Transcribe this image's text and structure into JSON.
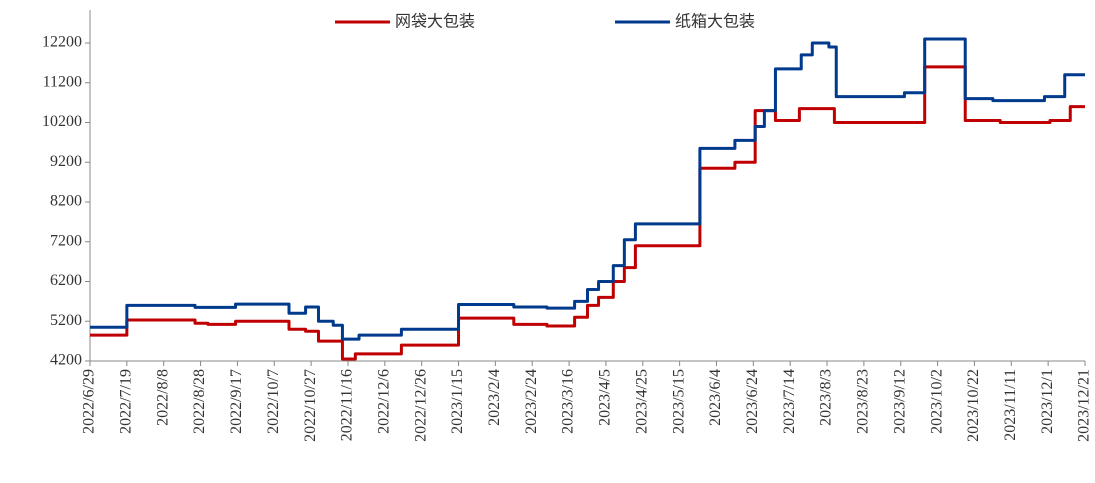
{
  "chart_data": {
    "type": "line",
    "step": true,
    "legend": "top",
    "ylim": [
      4200,
      12200
    ],
    "yticks": [
      4200,
      5200,
      6200,
      7200,
      8200,
      9200,
      10200,
      11200,
      12200
    ],
    "xlim": [
      "2022/6/29",
      "2023/12/21"
    ],
    "xticks": [
      "2022/6/29",
      "2022/7/19",
      "2022/8/8",
      "2022/8/28",
      "2022/9/17",
      "2022/10/7",
      "2022/10/27",
      "2022/11/16",
      "2022/12/6",
      "2022/12/26",
      "2023/1/15",
      "2023/2/4",
      "2023/2/24",
      "2023/3/16",
      "2023/4/5",
      "2023/4/25",
      "2023/5/15",
      "2023/6/4",
      "2023/6/24",
      "2023/7/14",
      "2023/8/3",
      "2023/8/23",
      "2023/9/12",
      "2023/10/2",
      "2023/10/22",
      "2023/11/11",
      "2023/12/1",
      "2023/12/21"
    ],
    "series": [
      {
        "name": "网袋大包装",
        "color": "#c00000",
        "x": [
          "2022/6/29",
          "2022/7/19",
          "2022/8/25",
          "2022/9/1",
          "2022/9/16",
          "2022/10/15",
          "2022/10/24",
          "2022/10/31",
          "2022/11/13",
          "2022/11/20",
          "2022/12/15",
          "2023/1/15",
          "2023/2/14",
          "2023/3/4",
          "2023/3/19",
          "2023/3/26",
          "2023/4/1",
          "2023/4/9",
          "2023/4/15",
          "2023/4/21",
          "2023/5/26",
          "2023/6/14",
          "2023/6/25",
          "2023/7/6",
          "2023/7/19",
          "2023/8/7",
          "2023/9/25",
          "2023/10/17",
          "2023/11/5",
          "2023/12/2",
          "2023/12/13",
          "2023/12/21"
        ],
        "values": [
          4850,
          5230,
          5150,
          5120,
          5200,
          5000,
          4950,
          4700,
          4250,
          4380,
          4600,
          5280,
          5120,
          5080,
          5300,
          5600,
          5800,
          6200,
          6550,
          7100,
          9050,
          9200,
          10500,
          10250,
          10550,
          10200,
          11600,
          10250,
          10200,
          10250,
          10600,
          10600
        ]
      },
      {
        "name": "纸箱大包装",
        "color": "#003a8c",
        "x": [
          "2022/6/29",
          "2022/7/19",
          "2022/8/25",
          "2022/9/16",
          "2022/10/15",
          "2022/10/24",
          "2022/10/31",
          "2022/11/8",
          "2022/11/13",
          "2022/11/22",
          "2022/12/15",
          "2023/1/15",
          "2023/2/14",
          "2023/3/4",
          "2023/3/19",
          "2023/3/26",
          "2023/4/1",
          "2023/4/9",
          "2023/4/15",
          "2023/4/21",
          "2023/5/26",
          "2023/6/14",
          "2023/6/25",
          "2023/6/30",
          "2023/7/6",
          "2023/7/20",
          "2023/7/26",
          "2023/8/4",
          "2023/8/8",
          "2023/9/14",
          "2023/9/25",
          "2023/10/17",
          "2023/11/1",
          "2023/11/29",
          "2023/12/10",
          "2023/12/21"
        ],
        "values": [
          5050,
          5600,
          5550,
          5630,
          5400,
          5560,
          5200,
          5100,
          4750,
          4850,
          5000,
          5620,
          5560,
          5530,
          5700,
          6000,
          6200,
          6600,
          7250,
          7650,
          9550,
          9750,
          10100,
          10500,
          11550,
          11900,
          12200,
          12100,
          10850,
          10950,
          12300,
          10800,
          10750,
          10850,
          11400,
          11400
        ]
      }
    ]
  }
}
